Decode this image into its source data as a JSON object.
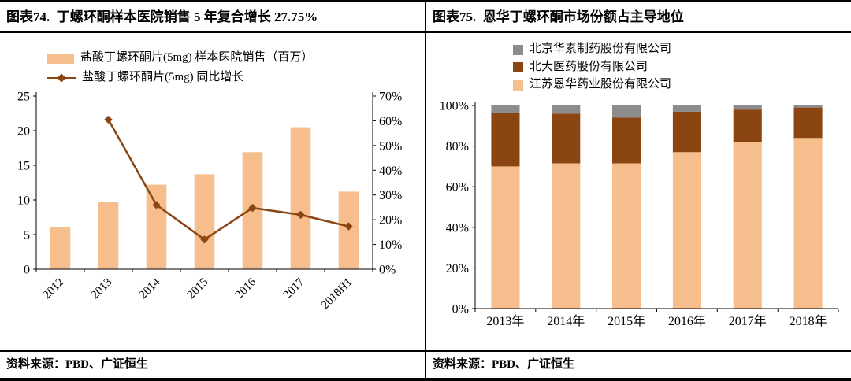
{
  "page": {
    "left": {
      "title": "图表74.  丁螺环酮样本医院销售 5 年复合增长 27.75%",
      "source": "资料来源：PBD、广证恒生",
      "chart_data": {
        "type": "bar+line",
        "title": "丁螺环酮样本医院销售 5 年复合增长 27.75%",
        "categories": [
          "2012",
          "2013",
          "2014",
          "2015",
          "2016",
          "2017",
          "2018H1"
        ],
        "series": [
          {
            "name": "盐酸丁螺环酮片(5mg) 样本医院销售（百万）",
            "type": "bar",
            "axis": "left",
            "color": "#F6BE8C",
            "values": [
              6.1,
              9.7,
              12.2,
              13.7,
              16.9,
              20.5,
              11.2
            ]
          },
          {
            "name": "盐酸丁螺环酮片(5mg) 同比增长",
            "type": "line",
            "axis": "right",
            "color": "#8B4513",
            "values": [
              null,
              60.5,
              26.0,
              12.0,
              24.8,
              22.0,
              17.3
            ]
          }
        ],
        "left_axis": {
          "min": 0,
          "max": 25,
          "ticks": [
            0,
            5,
            10,
            15,
            20,
            25
          ]
        },
        "right_axis": {
          "min": 0,
          "max": 70,
          "ticks": [
            0,
            10,
            20,
            30,
            40,
            50,
            60,
            70
          ],
          "format": "percent"
        },
        "legend_position": "top-left",
        "grid": false
      }
    },
    "right": {
      "title": "图表75.  恩华丁螺环酮市场份额占主导地位",
      "source": "资料来源：PBD、广证恒生",
      "chart_data": {
        "type": "stacked-bar-100",
        "title": "恩华丁螺环酮市场份额占主导地位",
        "categories": [
          "2013年",
          "2014年",
          "2015年",
          "2016年",
          "2017年",
          "2018年"
        ],
        "series": [
          {
            "name": "江苏恩华药业股份有限公司",
            "color": "#F6BE8C",
            "values": [
              70,
              71.5,
              71.5,
              77,
              82,
              84
            ]
          },
          {
            "name": "北大医药股份有限公司",
            "color": "#8B4513",
            "values": [
              26.5,
              24.5,
              22.5,
              20,
              16,
              15
            ]
          },
          {
            "name": "北京华素制药股份有限公司",
            "color": "#8C8C8C",
            "values": [
              3.5,
              4,
              6,
              3,
              2,
              1
            ]
          }
        ],
        "y_axis": {
          "min": 0,
          "max": 100,
          "ticks": [
            0,
            20,
            40,
            60,
            80,
            100
          ],
          "format": "percent"
        },
        "legend_position": "top",
        "grid": false
      }
    }
  }
}
